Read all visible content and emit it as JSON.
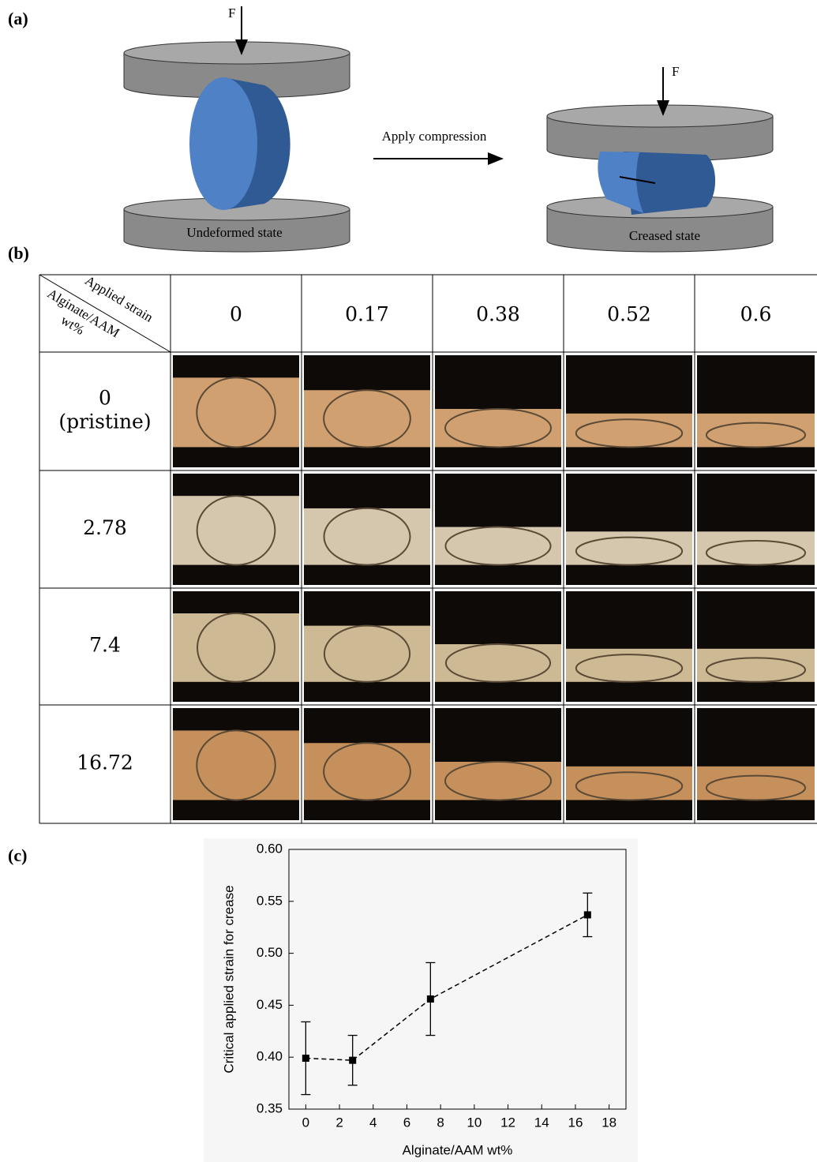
{
  "panel_a": {
    "label": "(a)",
    "force_left": "F",
    "force_right": "F",
    "arrow_text": "Apply compression",
    "left_state": "Undeformed state",
    "right_state": "Creased state"
  },
  "panel_b": {
    "label": "(b)",
    "corner_top": "Applied strain",
    "corner_bottom": "Alginate/AAM wt%",
    "columns": [
      "0",
      "0.17",
      "0.38",
      "0.52",
      "0.6"
    ],
    "rows": [
      [
        "0",
        "(pristine)"
      ],
      [
        "2.78"
      ],
      [
        "7.4"
      ],
      [
        "16.72"
      ]
    ]
  },
  "chart_data": {
    "type": "line",
    "label": "(c)",
    "x_label": "Alginate/AAM wt%",
    "y_label": "Critical applied strain for crease",
    "x": [
      0,
      2.78,
      7.4,
      16.72
    ],
    "values": [
      0.399,
      0.397,
      0.456,
      0.537
    ],
    "errors": [
      0.035,
      0.024,
      0.035,
      0.021
    ],
    "color": "#000000",
    "line_style": "dashed",
    "xlim": [
      -1,
      19
    ],
    "xticks": [
      0,
      2,
      4,
      6,
      8,
      10,
      12,
      14,
      16,
      18
    ],
    "ylim": [
      0.35,
      0.6
    ],
    "yticks": [
      0.35,
      {
        "value": 0.4,
        "label": "0.40"
      },
      0.45,
      {
        "value": 0.5,
        "label": "0.50"
      },
      0.55,
      {
        "value": 0.6,
        "label": "0.60"
      }
    ]
  }
}
